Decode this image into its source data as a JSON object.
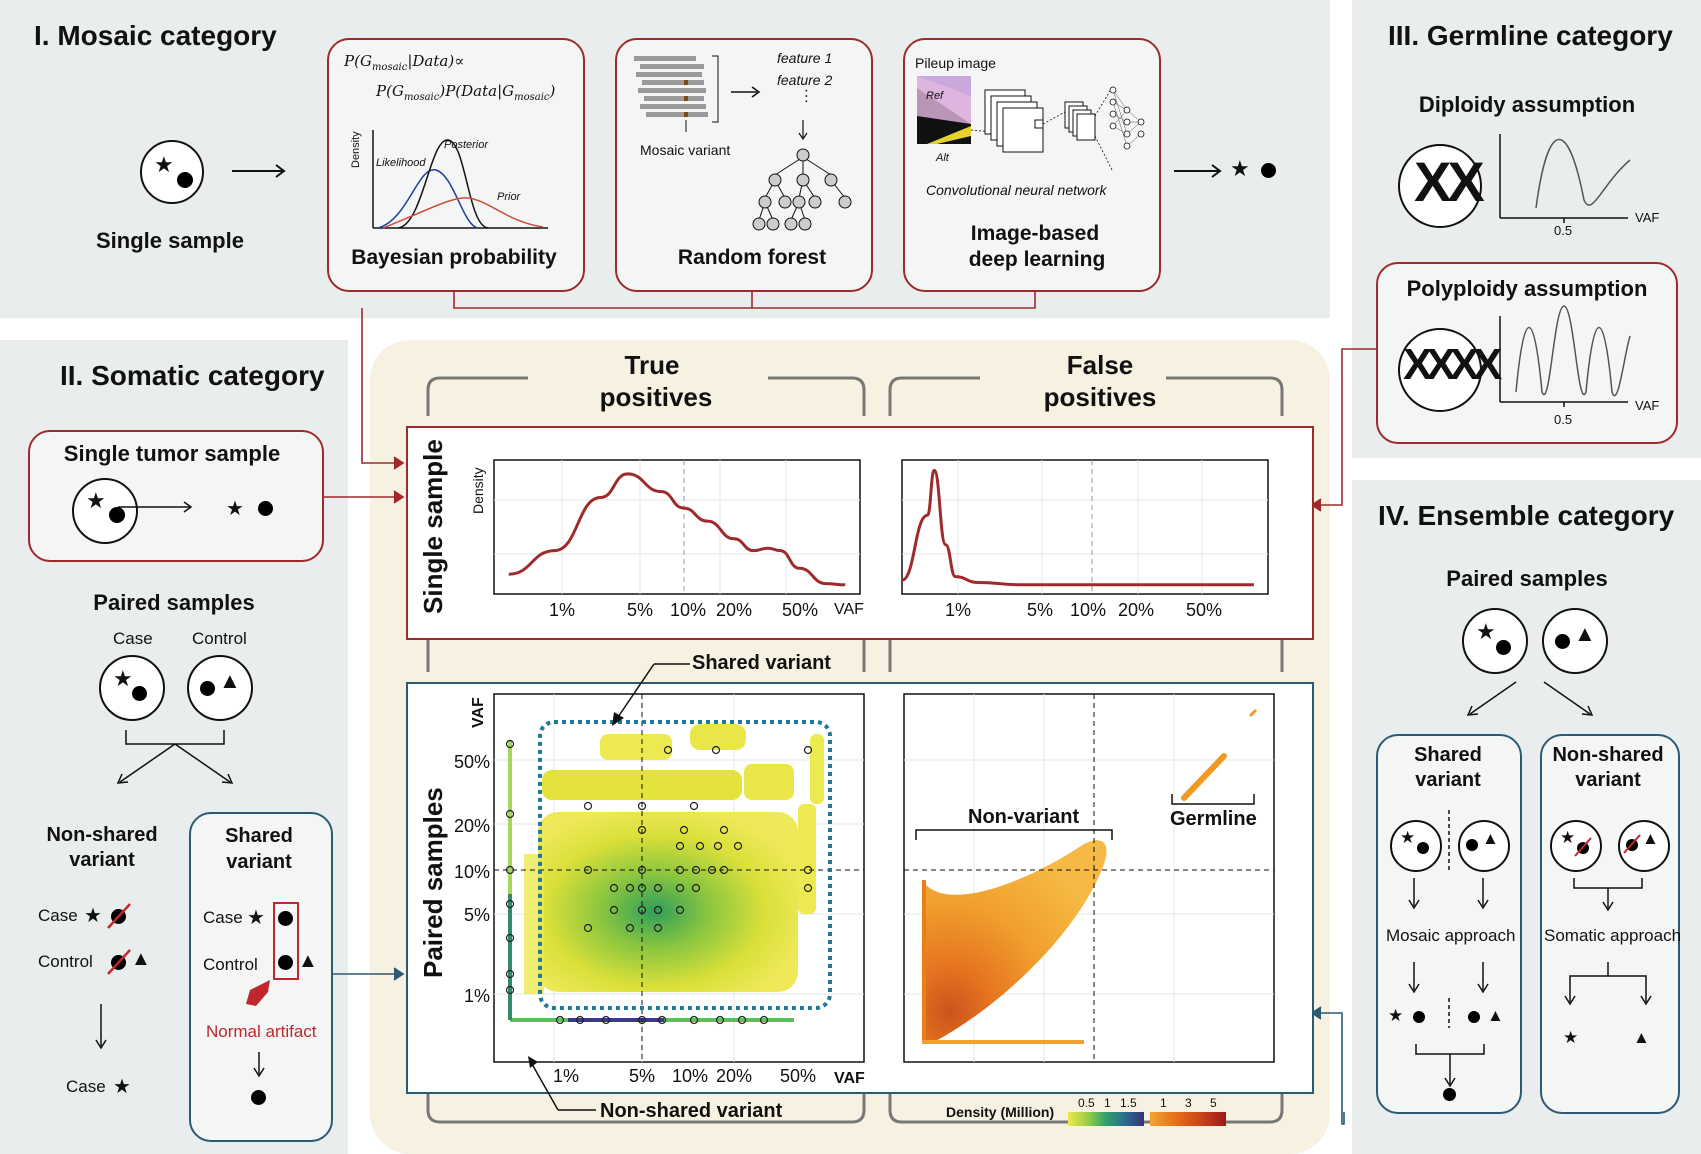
{
  "mosaic": {
    "title": "I. Mosaic category",
    "single_sample": "Single sample",
    "bayes": {
      "eq1": "P(G",
      "eq_sub": "mosaic",
      "eq_mid": "|Data)∝",
      "eq2": "P(G",
      "eq3": ")P(Data|G",
      "eq4": ")",
      "density": "Density",
      "likelihood": "Likelihood",
      "posterior": "Posterior",
      "prior": "Prior",
      "label": "Bayesian probability"
    },
    "rf": {
      "feature1": "feature 1",
      "feature2": "feature 2",
      "mosaic_variant": "Mosaic variant",
      "label": "Random forest"
    },
    "dl": {
      "pileup": "Pileup image",
      "ref": "Ref",
      "alt": "Alt",
      "cnn": "Convolutional neural network",
      "label1": "Image-based",
      "label2": "deep learning"
    }
  },
  "germline": {
    "title": "III. Germline category",
    "diploidy": "Diploidy assumption",
    "polyploidy": "Polyploidy assumption",
    "tick": "0.5",
    "vaf": "VAF"
  },
  "somatic": {
    "title": "II. Somatic category",
    "single_tumor": "Single tumor sample",
    "paired": "Paired samples",
    "case": "Case",
    "control": "Control",
    "non_shared_1": "Non-shared",
    "non_shared_2": "variant",
    "shared_1": "Shared",
    "shared_2": "variant",
    "normal_artifact": "Normal artifact"
  },
  "ensemble": {
    "title": "IV.  Ensemble category",
    "paired": "Paired samples",
    "shared_1": "Shared",
    "shared_2": "variant",
    "non_shared_1": "Non-shared",
    "non_shared_2": "variant",
    "mosaic_approach": "Mosaic approach",
    "somatic_approach": "Somatic approach"
  },
  "center": {
    "tp1": "True",
    "tp2": "positives",
    "fp1": "False",
    "fp2": "positives",
    "single_sample": "Single sample",
    "paired_samples": "Paired samples",
    "density": "Density",
    "vaf": "VAF",
    "shared_variant": "Shared variant",
    "non_shared_variant": "Non-shared variant",
    "non_variant": "Non-variant",
    "germline": "Germline",
    "legend_title": "Density (Million)",
    "legend_ticks_a": [
      "0.5",
      "1",
      "1.5"
    ],
    "legend_ticks_b": [
      "1",
      "3",
      "5"
    ],
    "colors": {
      "red": "#9e2a2b",
      "blue": "#2b5b72",
      "dotted": "#1f7a99"
    }
  },
  "chart_data": [
    {
      "type": "line",
      "title": "Single sample - True positives",
      "ylabel": "Density",
      "xlabel": "VAF",
      "x_ticks": [
        "1%",
        "5%",
        "10%",
        "20%",
        "50%"
      ],
      "x": [
        0.5,
        1,
        2,
        3,
        5,
        7,
        10,
        15,
        20,
        25,
        30,
        40,
        60,
        80
      ],
      "y": [
        0.1,
        0.3,
        0.75,
        0.95,
        0.8,
        0.66,
        0.55,
        0.4,
        0.3,
        0.32,
        0.3,
        0.15,
        0.02,
        0.01
      ]
    },
    {
      "type": "line",
      "title": "Single sample - False positives",
      "xlabel": "VAF",
      "x_ticks": [
        "1%",
        "5%",
        "10%",
        "20%",
        "50%"
      ],
      "x": [
        0.3,
        0.45,
        0.5,
        0.6,
        0.7,
        1,
        2,
        5,
        10,
        20,
        50,
        80
      ],
      "y": [
        0.05,
        0.6,
        0.98,
        0.35,
        0.08,
        0.03,
        0.01,
        0.01,
        0.01,
        0.01,
        0.01,
        0.01
      ]
    },
    {
      "type": "scatter",
      "title": "Paired samples - True positives",
      "ylabel": "VAF",
      "xlabel": "VAF",
      "x_ticks": [
        "1%",
        "5%",
        "10%",
        "20%",
        "50%"
      ],
      "y_ticks": [
        "50%",
        "20%",
        "10%",
        "5%",
        "1%"
      ]
    },
    {
      "type": "scatter",
      "title": "Paired samples - False positives"
    }
  ]
}
